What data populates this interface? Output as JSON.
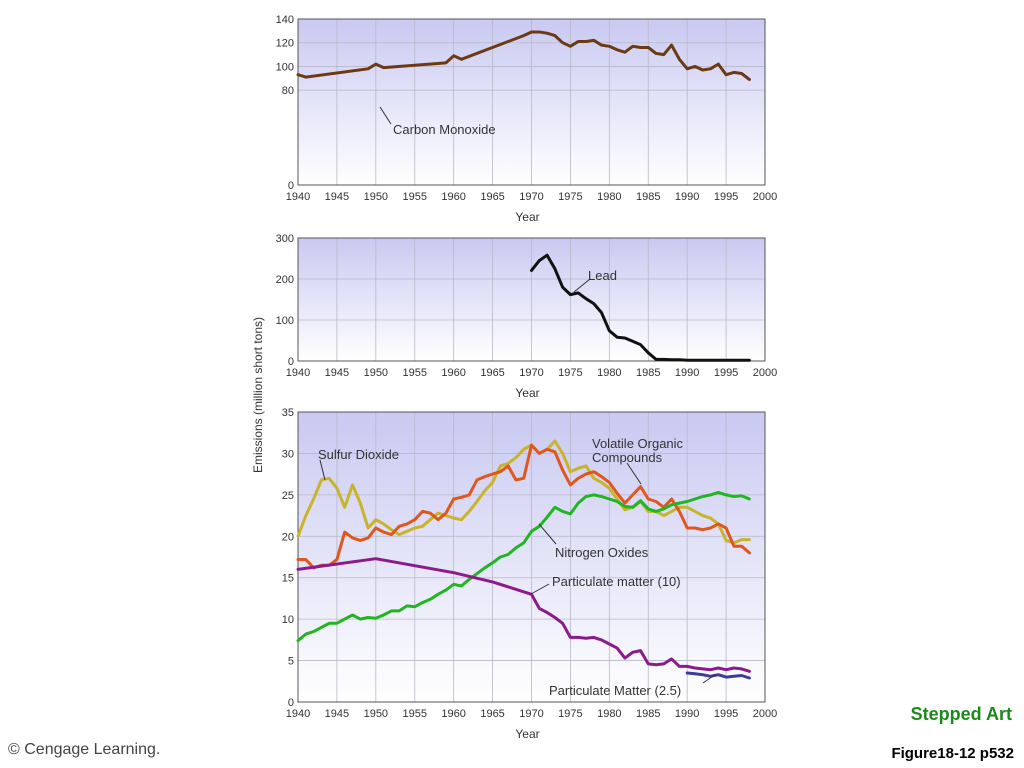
{
  "footer": {
    "copyright": "© Cengage Learning.",
    "stepped_art": "Stepped Art",
    "figure_label": "Figure18-12 p532"
  },
  "colors": {
    "plot_top": "#c9c9f2",
    "plot_bottom": "#ffffff",
    "grid": "#b8b8c8"
  },
  "shared_ylabel": "Emissions (million short tons)",
  "chart_data": [
    {
      "type": "line",
      "xlabel": "Year",
      "xlim": [
        1940,
        2000
      ],
      "xticks": [
        1940,
        1945,
        1950,
        1955,
        1960,
        1965,
        1970,
        1975,
        1980,
        1985,
        1990,
        1995,
        2000
      ],
      "ylim": [
        0,
        140
      ],
      "yticks": [
        0,
        80,
        100,
        120,
        140
      ],
      "grid": true,
      "series": [
        {
          "name": "Carbon Monoxide",
          "color": "#6b3a12",
          "x": [
            1940,
            1941,
            1949,
            1950,
            1951,
            1959,
            1960,
            1961,
            1969,
            1970,
            1971,
            1972,
            1973,
            1974,
            1975,
            1976,
            1977,
            1978,
            1979,
            1980,
            1981,
            1982,
            1983,
            1984,
            1985,
            1986,
            1987,
            1988,
            1989,
            1990,
            1991,
            1992,
            1993,
            1994,
            1995,
            1996,
            1997,
            1998
          ],
          "y": [
            93,
            91,
            98,
            102,
            99,
            103,
            109,
            106,
            126,
            129,
            129,
            128,
            126,
            120,
            117,
            121,
            121,
            122,
            118,
            117,
            114,
            112,
            117,
            116,
            116,
            111,
            110,
            118,
            106,
            98,
            100,
            97,
            98,
            102,
            93,
            95,
            94,
            89
          ]
        }
      ]
    },
    {
      "type": "line",
      "xlabel": "Year",
      "xlim": [
        1940,
        2000
      ],
      "xticks": [
        1940,
        1945,
        1950,
        1955,
        1960,
        1965,
        1970,
        1975,
        1980,
        1985,
        1990,
        1995,
        2000
      ],
      "ylim": [
        0,
        300
      ],
      "yticks": [
        0,
        100,
        200,
        300
      ],
      "grid": true,
      "series": [
        {
          "name": "Lead",
          "color": "#111111",
          "x": [
            1970,
            1971,
            1972,
            1973,
            1974,
            1975,
            1976,
            1977,
            1978,
            1979,
            1980,
            1981,
            1982,
            1983,
            1984,
            1985,
            1986,
            1987,
            1988,
            1989,
            1990,
            1991,
            1992,
            1993,
            1994,
            1995,
            1996,
            1997,
            1998
          ],
          "y": [
            221,
            245,
            258,
            225,
            180,
            162,
            166,
            152,
            140,
            118,
            74,
            58,
            56,
            48,
            40,
            20,
            4,
            4,
            3,
            3,
            2,
            2,
            2,
            2,
            2,
            2,
            2,
            2,
            2
          ]
        }
      ]
    },
    {
      "type": "line",
      "xlabel": "Year",
      "xlim": [
        1940,
        2000
      ],
      "xticks": [
        1940,
        1945,
        1950,
        1955,
        1960,
        1965,
        1970,
        1975,
        1980,
        1985,
        1990,
        1995,
        2000
      ],
      "ylim": [
        0,
        35
      ],
      "yticks": [
        0,
        5,
        10,
        15,
        20,
        25,
        30,
        35
      ],
      "grid": true,
      "series": [
        {
          "name": "Sulfur Dioxide",
          "color": "#c8b42a",
          "x": [
            1940,
            1941,
            1942,
            1943,
            1944,
            1945,
            1946,
            1947,
            1948,
            1949,
            1950,
            1951,
            1952,
            1953,
            1954,
            1955,
            1956,
            1957,
            1958,
            1959,
            1960,
            1961,
            1962,
            1963,
            1964,
            1965,
            1966,
            1967,
            1968,
            1969,
            1970,
            1971,
            1972,
            1973,
            1974,
            1975,
            1976,
            1977,
            1978,
            1979,
            1980,
            1981,
            1982,
            1983,
            1984,
            1985,
            1986,
            1987,
            1988,
            1989,
            1990,
            1991,
            1992,
            1993,
            1994,
            1995,
            1996,
            1997,
            1998
          ],
          "y": [
            20,
            22.5,
            24.5,
            26.8,
            27,
            25.8,
            23.5,
            26.2,
            24,
            21,
            22,
            21.5,
            20.8,
            20.2,
            20.6,
            21,
            21.2,
            22,
            22.8,
            22.5,
            22.2,
            22,
            23,
            24.2,
            25.5,
            26.5,
            28.5,
            28.8,
            29.5,
            30.5,
            31,
            30,
            30.5,
            31.5,
            30,
            27.8,
            28.2,
            28.5,
            27,
            26.5,
            25.8,
            24.5,
            23.2,
            23.5,
            24.2,
            23,
            23,
            22.5,
            23,
            23.5,
            23.5,
            23,
            22.5,
            22.2,
            21.5,
            19.5,
            19.2,
            19.6,
            19.6
          ]
        },
        {
          "name": "Volatile Organic Compounds",
          "color": "#e0561c",
          "x": [
            1940,
            1941,
            1942,
            1943,
            1944,
            1945,
            1946,
            1947,
            1948,
            1949,
            1950,
            1951,
            1952,
            1953,
            1954,
            1955,
            1956,
            1957,
            1958,
            1959,
            1960,
            1961,
            1962,
            1963,
            1964,
            1965,
            1966,
            1967,
            1968,
            1969,
            1970,
            1971,
            1972,
            1973,
            1974,
            1975,
            1976,
            1977,
            1978,
            1979,
            1980,
            1981,
            1982,
            1983,
            1984,
            1985,
            1986,
            1987,
            1988,
            1989,
            1990,
            1991,
            1992,
            1993,
            1994,
            1995,
            1996,
            1997,
            1998
          ],
          "y": [
            17.2,
            17.2,
            16.2,
            16.5,
            16.5,
            17.2,
            20.5,
            19.8,
            19.5,
            19.8,
            21,
            20.5,
            20.2,
            21.2,
            21.5,
            22,
            23,
            22.8,
            22,
            22.8,
            24.5,
            24.7,
            25,
            26.8,
            27.2,
            27.5,
            27.8,
            28.5,
            26.8,
            27,
            31,
            30,
            30.5,
            30.2,
            28,
            26.2,
            27,
            27.5,
            27.8,
            27.2,
            26.5,
            25.2,
            24,
            25,
            26,
            24.5,
            24.2,
            23.5,
            24.5,
            23,
            21,
            21,
            20.8,
            21,
            21.5,
            21,
            18.8,
            18.8,
            18
          ]
        },
        {
          "name": "Nitrogen Oxides",
          "color": "#22b522",
          "x": [
            1940,
            1941,
            1942,
            1943,
            1944,
            1945,
            1946,
            1947,
            1948,
            1949,
            1950,
            1951,
            1952,
            1953,
            1954,
            1955,
            1956,
            1957,
            1958,
            1959,
            1960,
            1961,
            1962,
            1963,
            1964,
            1965,
            1966,
            1967,
            1968,
            1969,
            1970,
            1971,
            1972,
            1973,
            1974,
            1975,
            1976,
            1977,
            1978,
            1979,
            1980,
            1981,
            1982,
            1983,
            1984,
            1985,
            1986,
            1987,
            1988,
            1989,
            1990,
            1991,
            1992,
            1993,
            1994,
            1995,
            1996,
            1997,
            1998
          ],
          "y": [
            7.4,
            8.2,
            8.5,
            9,
            9.5,
            9.5,
            10,
            10.5,
            10,
            10.2,
            10.1,
            10.5,
            11,
            11,
            11.6,
            11.5,
            12,
            12.4,
            13,
            13.5,
            14.2,
            14,
            14.8,
            15.5,
            16.2,
            16.8,
            17.5,
            17.8,
            18.6,
            19.2,
            20.6,
            21.2,
            22.3,
            23.5,
            23,
            22.7,
            24,
            24.8,
            25,
            24.8,
            24.5,
            24.2,
            23.6,
            23.5,
            24.3,
            23.3,
            23,
            23.3,
            23.8,
            24,
            24.2,
            24.5,
            24.8,
            25,
            25.3,
            25,
            24.8,
            24.9,
            24.5
          ]
        },
        {
          "name": "Particulate matter (10)",
          "color": "#8b1a8b",
          "x": [
            1940,
            1950,
            1960,
            1965,
            1970,
            1971,
            1972,
            1973,
            1974,
            1975,
            1976,
            1977,
            1978,
            1979,
            1980,
            1981,
            1982,
            1983,
            1984,
            1985,
            1986,
            1987,
            1988,
            1989,
            1990,
            1991,
            1992,
            1993,
            1994,
            1995,
            1996,
            1997,
            1998
          ],
          "y": [
            16,
            17.3,
            15.6,
            14.5,
            13,
            11.3,
            10.8,
            10.2,
            9.5,
            7.8,
            7.8,
            7.7,
            7.8,
            7.5,
            7.0,
            6.5,
            5.3,
            6,
            6.2,
            4.6,
            4.5,
            4.6,
            5.2,
            4.3,
            4.3,
            4.1,
            4,
            3.9,
            4.1,
            3.9,
            4.1,
            4,
            3.7
          ]
        },
        {
          "name": "Particulate Matter (2.5)",
          "color": "#3c3c9a",
          "x": [
            1990,
            1991,
            1992,
            1993,
            1994,
            1995,
            1996,
            1997,
            1998
          ],
          "y": [
            3.5,
            3.4,
            3.3,
            3.1,
            3.3,
            3.0,
            3.1,
            3.2,
            2.9
          ]
        }
      ]
    }
  ]
}
